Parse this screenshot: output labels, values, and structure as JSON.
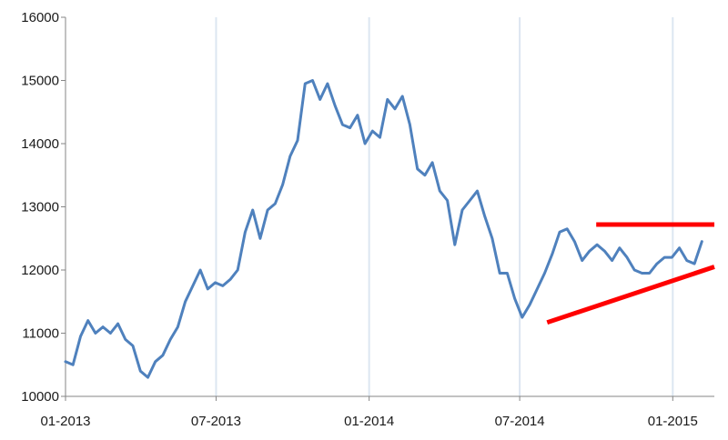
{
  "chart_data": {
    "type": "line",
    "title": "",
    "xlabel": "",
    "ylabel": "",
    "ylim": [
      10000,
      16000
    ],
    "yticks": [
      10000,
      11000,
      12000,
      13000,
      14000,
      15000,
      16000
    ],
    "xlim": [
      "2013-01-01",
      "2015-02-20"
    ],
    "xticks": [
      {
        "date": "2013-01-01",
        "label": "01-2013"
      },
      {
        "date": "2013-07-01",
        "label": "07-2013"
      },
      {
        "date": "2014-01-01",
        "label": "01-2014"
      },
      {
        "date": "2014-07-01",
        "label": "07-2014"
      },
      {
        "date": "2015-01-01",
        "label": "01-2015"
      }
    ],
    "grid": "vertical",
    "legend": "none",
    "colors": {
      "series": "#4f81bd",
      "annotation": "#ff0000",
      "grid": "#dce6f1",
      "axis": "#868686"
    },
    "series": [
      {
        "x": [
          "2013-01-01",
          "2013-01-10",
          "2013-01-19",
          "2013-01-28",
          "2013-02-06",
          "2013-02-15",
          "2013-02-24",
          "2013-03-05",
          "2013-03-14",
          "2013-03-23",
          "2013-04-01",
          "2013-04-10",
          "2013-04-19",
          "2013-04-28",
          "2013-05-07",
          "2013-05-16",
          "2013-05-25",
          "2013-06-03",
          "2013-06-12",
          "2013-06-21",
          "2013-06-30",
          "2013-07-09",
          "2013-07-18",
          "2013-07-27",
          "2013-08-05",
          "2013-08-14",
          "2013-08-23",
          "2013-09-01",
          "2013-09-10",
          "2013-09-19",
          "2013-09-28",
          "2013-10-07",
          "2013-10-16",
          "2013-10-25",
          "2013-11-03",
          "2013-11-12",
          "2013-11-21",
          "2013-11-30",
          "2013-12-09",
          "2013-12-18",
          "2013-12-27",
          "2014-01-05",
          "2014-01-14",
          "2014-01-23",
          "2014-02-01",
          "2014-02-10",
          "2014-02-19",
          "2014-02-28",
          "2014-03-09",
          "2014-03-18",
          "2014-03-27",
          "2014-04-05",
          "2014-04-14",
          "2014-04-23",
          "2014-05-02",
          "2014-05-11",
          "2014-05-20",
          "2014-05-29",
          "2014-06-07",
          "2014-06-16",
          "2014-06-25",
          "2014-07-04",
          "2014-07-13",
          "2014-07-22",
          "2014-07-31",
          "2014-08-09",
          "2014-08-18",
          "2014-08-27",
          "2014-09-05",
          "2014-09-14",
          "2014-09-23",
          "2014-10-02",
          "2014-10-11",
          "2014-10-20",
          "2014-10-29",
          "2014-11-07",
          "2014-11-16",
          "2014-11-25",
          "2014-12-04",
          "2014-12-13",
          "2014-12-22",
          "2014-12-31",
          "2015-01-09",
          "2015-01-18",
          "2015-01-27",
          "2015-02-05"
        ],
        "y": [
          10550,
          10500,
          10950,
          11200,
          11000,
          11100,
          11000,
          11150,
          10900,
          10800,
          10400,
          10300,
          10550,
          10650,
          10900,
          11100,
          11500,
          11750,
          12000,
          11700,
          11800,
          11750,
          11850,
          12000,
          12600,
          12950,
          12500,
          12950,
          13050,
          13350,
          13800,
          14050,
          14950,
          15000,
          14700,
          14950,
          14600,
          14300,
          14250,
          14450,
          14000,
          14200,
          14100,
          14700,
          14550,
          14750,
          14300,
          13600,
          13500,
          13700,
          13250,
          13100,
          12400,
          12950,
          13100,
          13250,
          12850,
          12500,
          11950,
          11950,
          11550,
          11250,
          11450,
          11700,
          11950,
          12250,
          12600,
          12650,
          12450,
          12150,
          12300,
          12400,
          12300,
          12150,
          12350,
          12200,
          12000,
          11950,
          11950,
          12100,
          12200,
          12200,
          12350,
          12150,
          12100,
          12450
        ]
      }
    ],
    "annotations": [
      {
        "kind": "resistance",
        "x": [
          "2014-10-01",
          "2015-02-20"
        ],
        "y": [
          12720,
          12720
        ]
      },
      {
        "kind": "support",
        "x": [
          "2014-08-03",
          "2015-02-20"
        ],
        "y": [
          11170,
          12050
        ]
      }
    ]
  }
}
